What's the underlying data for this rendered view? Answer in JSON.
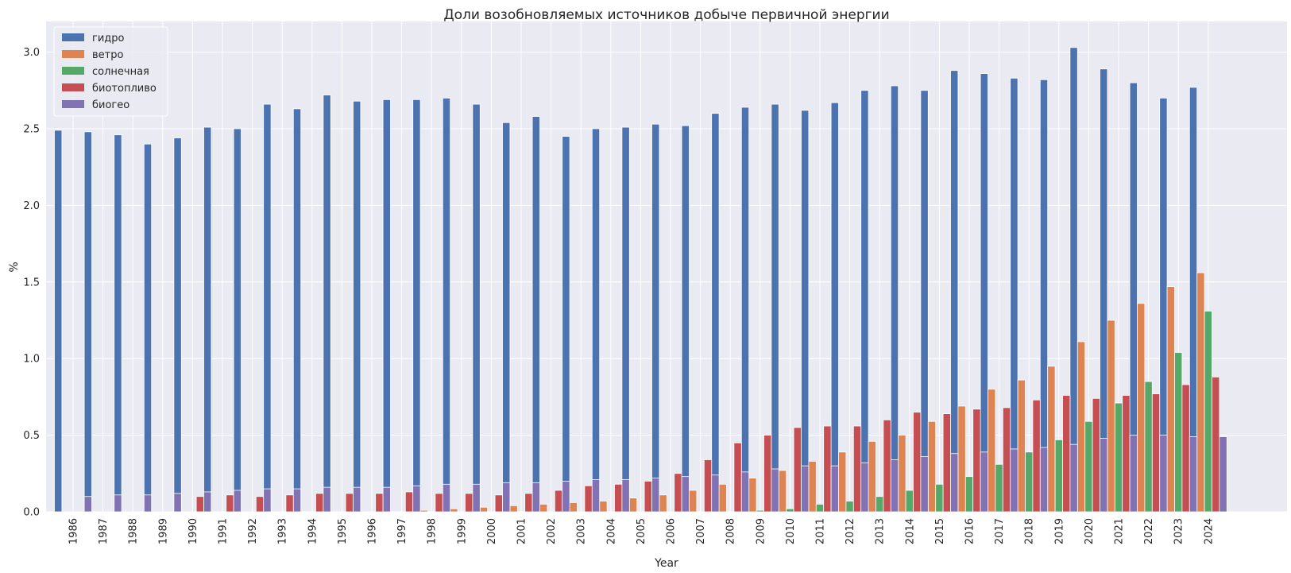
{
  "chart_data": {
    "type": "bar",
    "title": "Доли возобновляемых источников добыче первичной энергии",
    "xlabel": "Year",
    "ylabel": "%",
    "ylim": [
      0,
      3.2
    ],
    "yticks": [
      "0.0",
      "0.5",
      "1.0",
      "1.5",
      "2.0",
      "2.5",
      "3.0"
    ],
    "grid": true,
    "legend_position": "top-left",
    "categories": [
      "1986",
      "1987",
      "1988",
      "1989",
      "1990",
      "1991",
      "1992",
      "1993",
      "1994",
      "1995",
      "1996",
      "1997",
      "1998",
      "1999",
      "2000",
      "2001",
      "2002",
      "2003",
      "2004",
      "2005",
      "2006",
      "2007",
      "2008",
      "2009",
      "2010",
      "2011",
      "2012",
      "2013",
      "2014",
      "2015",
      "2016",
      "2017",
      "2018",
      "2019",
      "2020",
      "2021",
      "2022",
      "2023",
      "2024"
    ],
    "series": [
      {
        "name": "гидро",
        "color": "#4c72b0",
        "values": [
          2.49,
          2.48,
          2.46,
          2.4,
          2.44,
          2.51,
          2.5,
          2.66,
          2.63,
          2.72,
          2.68,
          2.69,
          2.69,
          2.7,
          2.66,
          2.54,
          2.58,
          2.45,
          2.5,
          2.51,
          2.53,
          2.52,
          2.6,
          2.64,
          2.66,
          2.62,
          2.67,
          2.75,
          2.78,
          2.75,
          2.88,
          2.86,
          2.83,
          2.82,
          3.03,
          2.89,
          2.8,
          2.7,
          2.77
        ]
      },
      {
        "name": "ветро",
        "color": "#dd8452",
        "values": [
          0,
          0,
          0,
          0,
          0,
          0,
          0,
          0,
          0,
          0,
          0,
          0,
          0.01,
          0.02,
          0.03,
          0.04,
          0.05,
          0.06,
          0.07,
          0.09,
          0.11,
          0.14,
          0.18,
          0.22,
          0.27,
          0.33,
          0.39,
          0.46,
          0.5,
          0.59,
          0.69,
          0.8,
          0.86,
          0.95,
          1.11,
          1.25,
          1.36,
          1.47,
          1.56
        ]
      },
      {
        "name": "солнечная",
        "color": "#55a868",
        "values": [
          0,
          0,
          0,
          0,
          0,
          0,
          0,
          0,
          0,
          0,
          0,
          0,
          0,
          0,
          0,
          0,
          0,
          0,
          0,
          0,
          0,
          0,
          0,
          0.01,
          0.02,
          0.05,
          0.07,
          0.1,
          0.14,
          0.18,
          0.23,
          0.31,
          0.39,
          0.47,
          0.59,
          0.71,
          0.85,
          1.04,
          1.31
        ]
      },
      {
        "name": "биотопливо",
        "color": "#c44e52",
        "values": [
          0,
          0,
          0,
          0,
          0.1,
          0.11,
          0.1,
          0.11,
          0.12,
          0.12,
          0.12,
          0.13,
          0.12,
          0.12,
          0.11,
          0.12,
          0.14,
          0.17,
          0.18,
          0.2,
          0.25,
          0.34,
          0.45,
          0.5,
          0.55,
          0.56,
          0.56,
          0.6,
          0.65,
          0.64,
          0.67,
          0.68,
          0.73,
          0.76,
          0.74,
          0.76,
          0.77,
          0.83,
          0.88
        ]
      },
      {
        "name": "биогео",
        "color": "#8172b3",
        "values": [
          0.1,
          0.11,
          0.11,
          0.12,
          0.13,
          0.14,
          0.15,
          0.15,
          0.16,
          0.16,
          0.16,
          0.17,
          0.18,
          0.18,
          0.19,
          0.19,
          0.2,
          0.21,
          0.21,
          0.22,
          0.23,
          0.24,
          0.26,
          0.28,
          0.3,
          0.3,
          0.32,
          0.34,
          0.36,
          0.38,
          0.39,
          0.41,
          0.42,
          0.44,
          0.48,
          0.5,
          0.5,
          0.49,
          0.49
        ]
      }
    ]
  }
}
